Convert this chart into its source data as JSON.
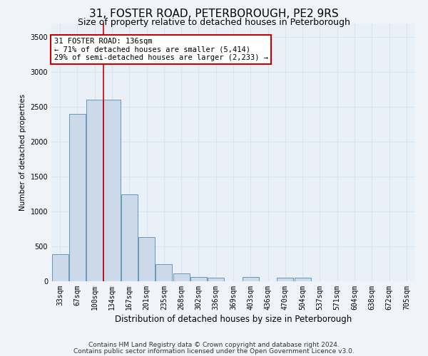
{
  "title1": "31, FOSTER ROAD, PETERBOROUGH, PE2 9RS",
  "title2": "Size of property relative to detached houses in Peterborough",
  "xlabel": "Distribution of detached houses by size in Peterborough",
  "ylabel": "Number of detached properties",
  "footer1": "Contains HM Land Registry data © Crown copyright and database right 2024.",
  "footer2": "Contains public sector information licensed under the Open Government Licence v3.0.",
  "annotation_title": "31 FOSTER ROAD: 136sqm",
  "annotation_line1": "← 71% of detached houses are smaller (5,414)",
  "annotation_line2": "29% of semi-detached houses are larger (2,233) →",
  "bar_color": "#ccd9e8",
  "bar_edge_color": "#6699bb",
  "red_line_x": 3,
  "annotation_box_color": "#ffffff",
  "annotation_box_edge": "#cc0000",
  "categories": [
    "33sqm",
    "67sqm",
    "100sqm",
    "134sqm",
    "167sqm",
    "201sqm",
    "235sqm",
    "268sqm",
    "302sqm",
    "336sqm",
    "369sqm",
    "403sqm",
    "436sqm",
    "470sqm",
    "504sqm",
    "537sqm",
    "571sqm",
    "604sqm",
    "638sqm",
    "672sqm",
    "705sqm"
  ],
  "values": [
    390,
    2400,
    2600,
    2600,
    1250,
    630,
    240,
    110,
    65,
    55,
    0,
    65,
    0,
    50,
    55,
    0,
    0,
    0,
    0,
    0,
    0
  ],
  "ylim": [
    0,
    3700
  ],
  "yticks": [
    0,
    500,
    1000,
    1500,
    2000,
    2500,
    3000,
    3500
  ],
  "background_color": "#f0f4f8",
  "plot_bg_color": "#eaf0f8",
  "grid_color": "#d8e4f0",
  "title1_fontsize": 11,
  "title2_fontsize": 9,
  "xlabel_fontsize": 8.5,
  "ylabel_fontsize": 7.5,
  "tick_fontsize": 7,
  "annotation_fontsize": 7.5,
  "footer_fontsize": 6.5
}
